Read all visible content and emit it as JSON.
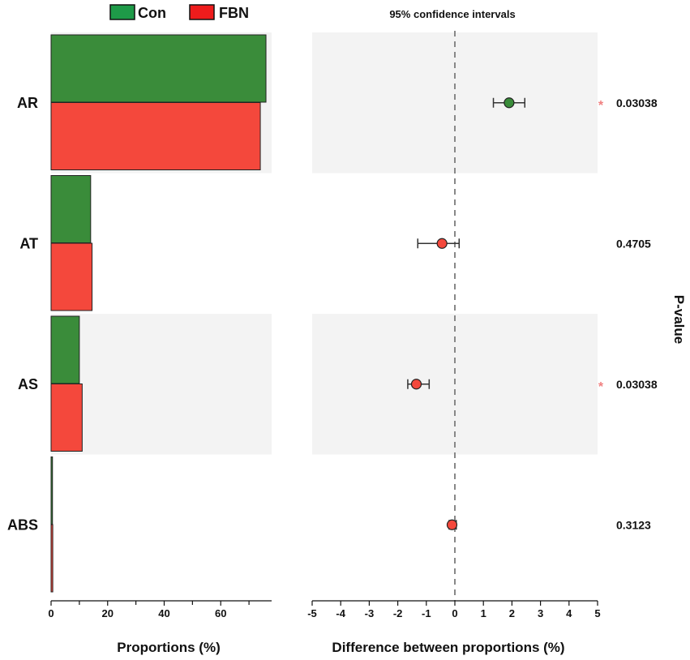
{
  "chart_data": {
    "type": "bar",
    "title": "95% confidence intervals",
    "legend": [
      {
        "name": "Con",
        "color": "#3a8c3a",
        "swatch_color": "#1e9a48"
      },
      {
        "name": "FBN",
        "color": "#f4483c",
        "swatch_color": "#ee1c1c"
      }
    ],
    "categories": [
      "AR",
      "AT",
      "AS",
      "ABS"
    ],
    "series": [
      {
        "name": "Con",
        "values": [
          76,
          14,
          10,
          0.5
        ]
      },
      {
        "name": "FBN",
        "values": [
          74,
          14.5,
          11,
          0.6
        ]
      }
    ],
    "proportions_axis": {
      "xlabel": "Proportions (%)",
      "xlim": [
        0,
        78
      ],
      "ticks": [
        0,
        20,
        40,
        60
      ],
      "minor_ticks": [
        10,
        30,
        50,
        70
      ]
    },
    "difference_axis": {
      "xlabel": "Difference between proportions (%)",
      "xlim": [
        -5,
        5
      ],
      "ticks": [
        -5,
        -4,
        -3,
        -2,
        -1,
        0,
        1,
        2,
        3,
        4,
        5
      ],
      "tick_labels": [
        "-5",
        "-4",
        "-3",
        "-2",
        "-1",
        "0",
        "1",
        "2",
        "3",
        "4",
        "5"
      ]
    },
    "differences": [
      {
        "category": "AR",
        "diff": 1.9,
        "ci": [
          1.35,
          2.45
        ],
        "favors": "Con",
        "p_value": "0.03038",
        "significant": true
      },
      {
        "category": "AT",
        "diff": -0.45,
        "ci": [
          -1.3,
          0.15
        ],
        "favors": "FBN",
        "p_value": "0.4705",
        "significant": false
      },
      {
        "category": "AS",
        "diff": -1.35,
        "ci": [
          -1.65,
          -0.9
        ],
        "favors": "FBN",
        "p_value": "0.03038",
        "significant": true
      },
      {
        "category": "ABS",
        "diff": -0.1,
        "ci": [
          -0.2,
          0.05
        ],
        "favors": "FBN",
        "p_value": "0.3123",
        "significant": false
      }
    ],
    "significance_marker": "*",
    "pvalue_label": "P-value",
    "grid": false,
    "legend_position": "top-left"
  }
}
